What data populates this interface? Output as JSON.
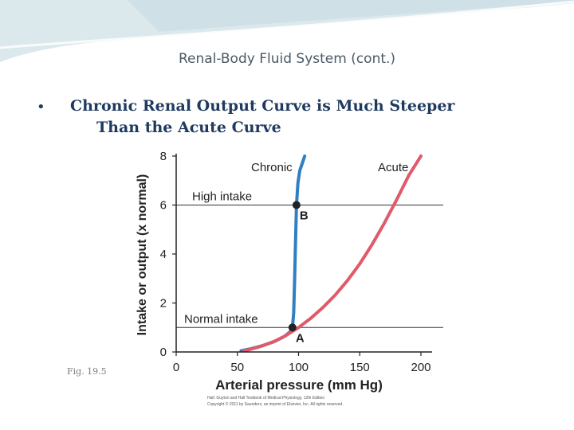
{
  "slide": {
    "title": "Renal-Body Fluid System (cont.)",
    "bullet_marker": "•",
    "bullet_line1": "Chronic Renal Output Curve is Much Steeper",
    "bullet_line2": "Than the Acute Curve",
    "figure_label": "Fig. 19.5",
    "credit_line1": "Hall: Guyton and Hall Textbook of Medical Physiology, 12th Edition",
    "credit_line2": "Copyright © 2011 by Saunders, an imprint of Elsevier, Inc. All rights reserved."
  },
  "colors": {
    "chronic": "#2f7fc1",
    "acute": "#e05a6a",
    "title_text": "#4a5a66",
    "bullet_text": "#1f3a5f"
  },
  "chart_data": {
    "type": "line",
    "xlabel": "Arterial pressure (mm Hg)",
    "ylabel": "Intake or output (x normal)",
    "xlim": [
      0,
      200
    ],
    "ylim": [
      0,
      8
    ],
    "xticks": [
      "0",
      "50",
      "100",
      "150",
      "200"
    ],
    "yticks": [
      "0",
      "2",
      "4",
      "6",
      "8"
    ],
    "series": [
      {
        "name": "Chronic",
        "color": "#2f7fc1",
        "x": [
          53,
          60,
          70,
          80,
          88,
          93,
          95,
          96,
          96.8,
          97.5,
          98.3,
          99.5,
          101,
          103,
          105
        ],
        "y": [
          0.05,
          0.12,
          0.25,
          0.42,
          0.62,
          0.82,
          1.0,
          1.6,
          3.0,
          4.5,
          6.0,
          6.9,
          7.4,
          7.7,
          8.0
        ]
      },
      {
        "name": "Acute",
        "color": "#e05a6a",
        "x": [
          55,
          60,
          70,
          80,
          90,
          100,
          110,
          120,
          130,
          140,
          150,
          160,
          170,
          180,
          190,
          200
        ],
        "y": [
          0.05,
          0.1,
          0.24,
          0.43,
          0.68,
          1.0,
          1.38,
          1.82,
          2.33,
          2.92,
          3.6,
          4.38,
          5.25,
          6.2,
          7.2,
          8.0
        ]
      }
    ],
    "reference_lines": [
      {
        "label": "High intake",
        "y": 6
      },
      {
        "label": "Normal intake",
        "y": 1
      }
    ],
    "points": [
      {
        "label": "A",
        "x": 95,
        "y": 1
      },
      {
        "label": "B",
        "x": 98.3,
        "y": 6
      }
    ],
    "legend": "curve labels placed on the plot (Chronic top-center, Acute top-right)"
  }
}
